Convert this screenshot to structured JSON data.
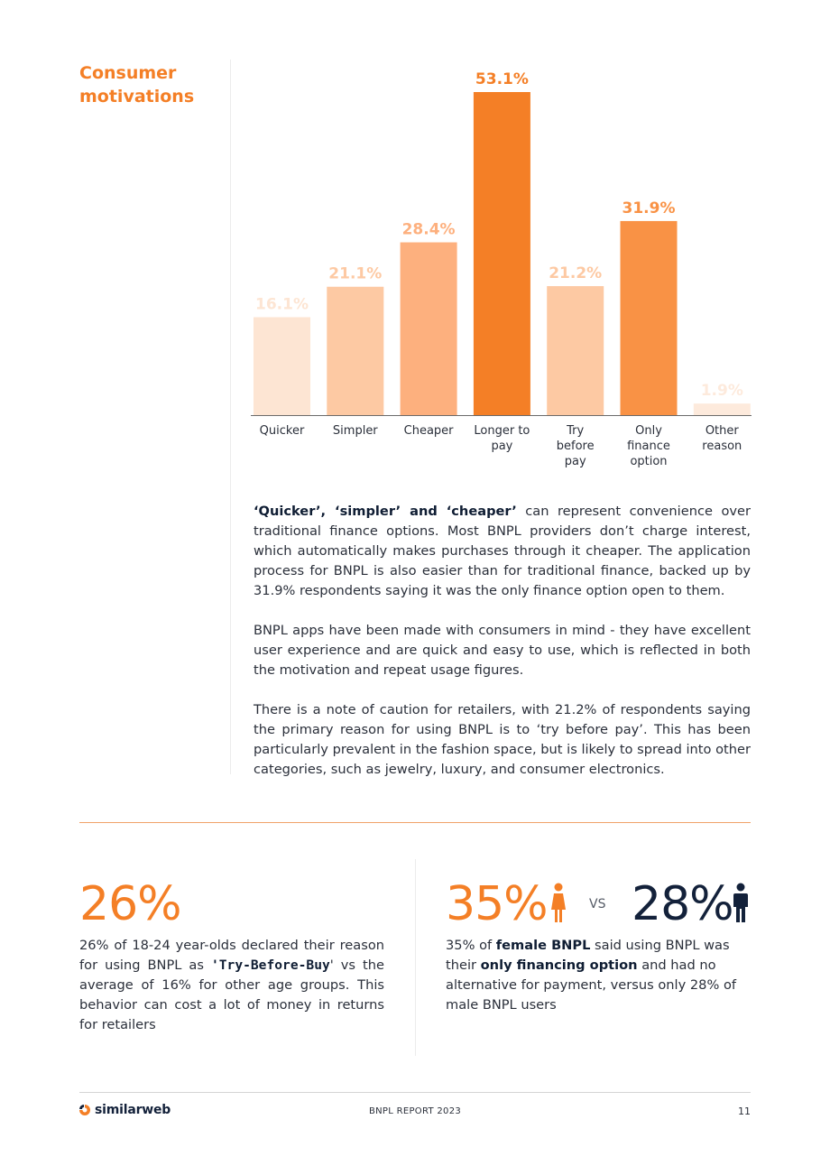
{
  "section": {
    "title": "Consumer motivations"
  },
  "chart_data": {
    "type": "bar",
    "categories": [
      [
        "Quicker"
      ],
      [
        "Simpler"
      ],
      [
        "Cheaper"
      ],
      [
        "Longer to",
        "pay"
      ],
      [
        "Try",
        "before",
        "pay"
      ],
      [
        "Only",
        "finance",
        "option"
      ],
      [
        "Other",
        "reason"
      ]
    ],
    "values": [
      16.1,
      21.1,
      28.4,
      53.1,
      21.2,
      31.9,
      1.9
    ],
    "value_labels": [
      "16.1%",
      "21.1%",
      "28.4%",
      "53.1%",
      "21.2%",
      "31.9%",
      "1.9%"
    ],
    "ylim": [
      0,
      53.1
    ],
    "colors": [
      "#fde5d3",
      "#fdc9a3",
      "#fdb07e",
      "#f47f26",
      "#fdc9a3",
      "#f99245",
      "#fdeadc"
    ],
    "label_colors": [
      "#fde5d3",
      "#fdc9a3",
      "#fdb07e",
      "#f47f26",
      "#fdc9a3",
      "#f99245",
      "#fdeadc"
    ],
    "axis_color": "#6b6b6b",
    "grid": false,
    "title": "",
    "xlabel": "",
    "ylabel": ""
  },
  "body": {
    "p1_bold": "‘Quicker’, ‘simpler’ and ‘cheaper’",
    "p1_rest": " can represent convenience over traditional finance options. Most BNPL providers don’t charge interest, which automatically makes purchases through it cheaper. The application process for BNPL is also easier than for traditional finance, backed up by 31.9% respondents saying it was the only finance option open to them.",
    "p2": "BNPL apps have been made with consumers in mind - they have excellent user experience and are quick and easy to use, which is reflected in both the motivation and repeat usage figures.",
    "p3": "There is a note of caution for retailers, with 21.2% of respondents saying the primary reason for using BNPL is to ‘try before pay’. This has been particularly prevalent in the fashion space, but is likely to spread into other categories, such as jewelry, luxury, and consumer electronics."
  },
  "stat_left": {
    "value": "26%",
    "text_a": "26% of 18-24 year-olds declared their reason for using BNPL as ",
    "text_bold": "'Try-Before-Buy",
    "text_b": "' vs the average of 16% for other age groups. This behavior can cost a lot of money in returns for retailers"
  },
  "stat_right": {
    "value_female": "35%",
    "vs": "VS",
    "value_male": "28%",
    "text_a": "35% of ",
    "text_bold1": "female BNPL",
    "text_b": " said using BNPL was their ",
    "text_bold2": "only financing option",
    "text_c": " and had no alternative for payment, versus only 28% of male BNPL users",
    "female_color": "#f47f26",
    "male_color": "#13213a"
  },
  "footer": {
    "logo_text": "similarweb",
    "report": "BNPL REPORT 2023",
    "page": "11"
  }
}
